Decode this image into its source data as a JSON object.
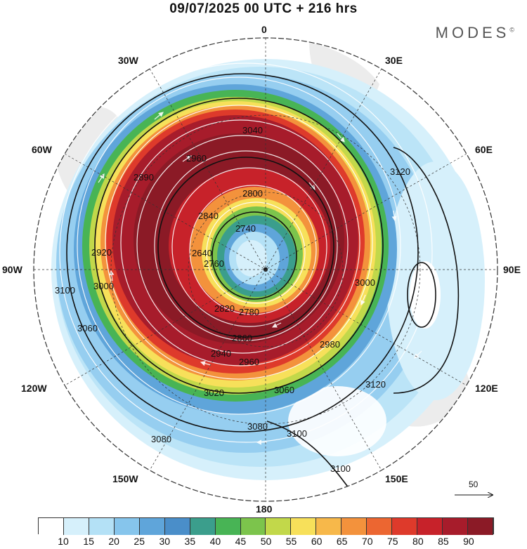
{
  "title": "09/07/2025  00 UTC  + 216 hrs",
  "brand": "MODES",
  "brand_mark": "©",
  "longitude_labels": {
    "top": "0",
    "top_right": "30E",
    "right_upper": "60E",
    "right": "90E",
    "right_lower": "120E",
    "bottom_right": "150E",
    "bottom": "180",
    "bottom_left": "150W",
    "left_lower": "120W",
    "left": "90W",
    "left_upper": "60W",
    "top_left": "30W"
  },
  "contour_labels": [
    "3100",
    "3040",
    "2960",
    "2920",
    "2890",
    "2800",
    "2840",
    "2740",
    "2760",
    "2640",
    "2820",
    "2780",
    "2860",
    "2940",
    "2960",
    "2980",
    "3000",
    "3020",
    "3060",
    "3080",
    "3100",
    "3120",
    "3100",
    "3120",
    "3080",
    "3000",
    "3060"
  ],
  "reference_vector": "50",
  "colorbar": {
    "colors": [
      "#ffffff",
      "#d6f0fb",
      "#b4e1f6",
      "#86c5ec",
      "#5fa5da",
      "#4a8ec9",
      "#3b9e8c",
      "#48b455",
      "#7cc44c",
      "#c2d84a",
      "#f7e05a",
      "#f7b84a",
      "#f3923c",
      "#ec6631",
      "#de3a2b",
      "#c7222a",
      "#a71c2b",
      "#8b1a26"
    ],
    "ticks": [
      "10",
      "15",
      "20",
      "25",
      "30",
      "35",
      "40",
      "45",
      "50",
      "55",
      "60",
      "65",
      "70",
      "75",
      "80",
      "85",
      "90"
    ]
  }
}
